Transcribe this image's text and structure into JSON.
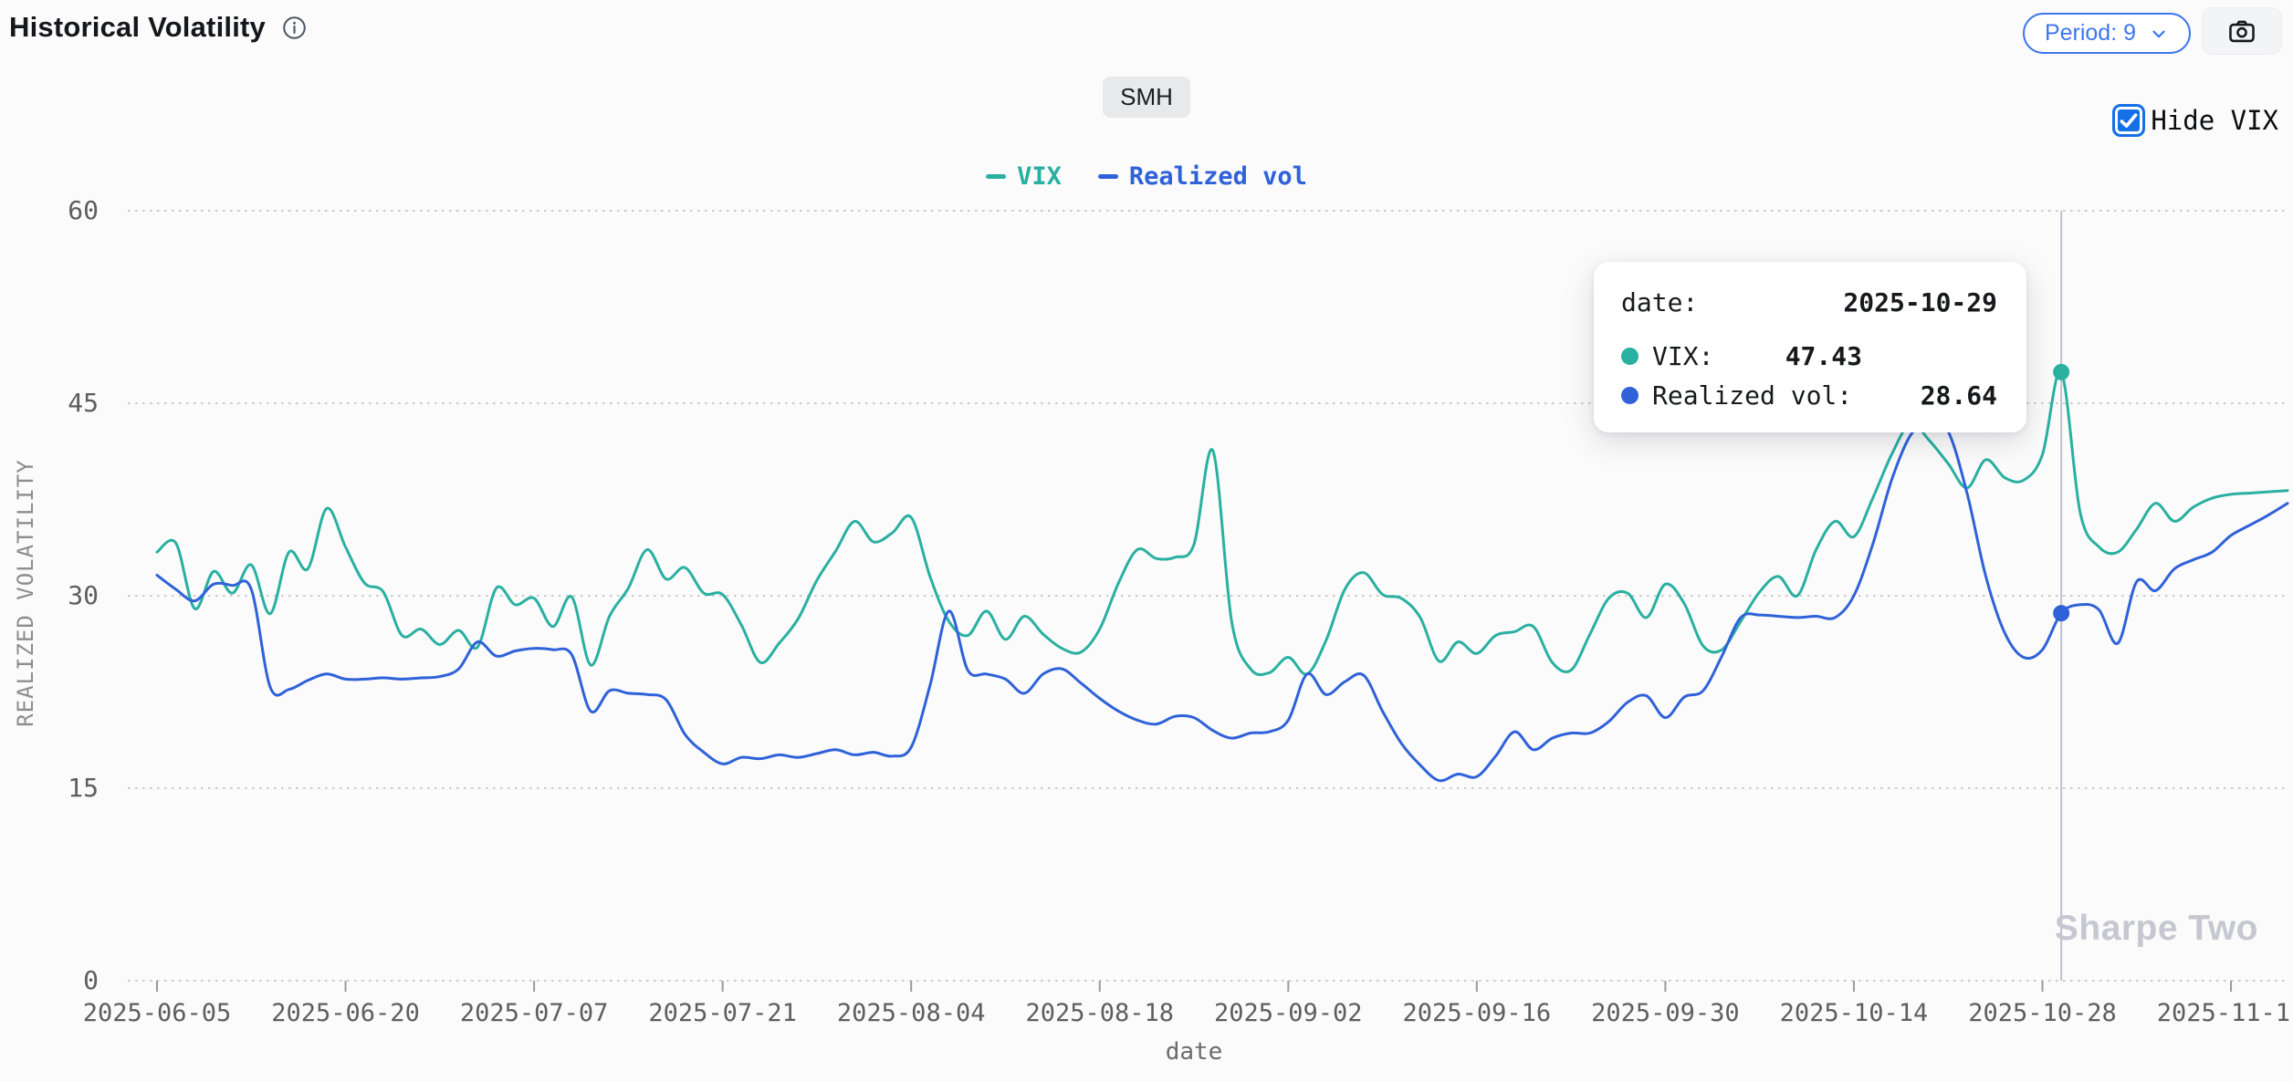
{
  "header": {
    "title": "Historical Volatility",
    "info_icon": "info-icon"
  },
  "controls": {
    "period_button_label": "Period: 9",
    "chevron_icon": "chevron-down-icon",
    "camera_icon": "camera-icon",
    "hide_vix_label": "Hide VIX",
    "hide_vix_checked": true
  },
  "symbol_badge": "SMH",
  "legend": [
    {
      "label": "VIX",
      "color": "#29b0a1"
    },
    {
      "label": "Realized vol",
      "color": "#2f62d9"
    }
  ],
  "tooltip": {
    "date_label": "date:",
    "date_value": "2025-10-29",
    "vix_label": "VIX:",
    "vix_value": "47.43",
    "rv_label": "Realized vol:",
    "rv_value": "28.64"
  },
  "watermark": "Sharpe Two",
  "colors": {
    "accent_blue_button": "#3d76ef",
    "checkbox_blue": "#1470e6",
    "grid": "#cbcbcb",
    "crosshair": "#bdc1c8",
    "axis_text": "#5e5e5e"
  },
  "chart_data": {
    "type": "line",
    "title": "Historical Volatility",
    "xlabel": "date",
    "ylabel": "REALIZED VOLATILITY",
    "ylim": [
      0,
      60
    ],
    "y_ticks": [
      0,
      15,
      30,
      45,
      60
    ],
    "grid": "dotted-horizontal",
    "legend_position": "top-center",
    "n_points": 114,
    "x_tick_indices": [
      0,
      10,
      20,
      30,
      40,
      50,
      60,
      70,
      80,
      90,
      100,
      110
    ],
    "x_tick_labels": [
      "2025-06-05",
      "2025-06-20",
      "2025-07-07",
      "2025-07-21",
      "2025-08-04",
      "2025-08-18",
      "2025-09-02",
      "2025-09-16",
      "2025-09-30",
      "2025-10-14",
      "2025-10-28",
      "2025-11-11"
    ],
    "series": [
      {
        "name": "VIX",
        "color": "#29b0a1",
        "values": [
          33.4,
          34.1,
          29.0,
          31.9,
          30.2,
          32.4,
          28.6,
          33.4,
          32.1,
          36.8,
          33.8,
          31.0,
          30.3,
          26.9,
          27.4,
          26.2,
          27.3,
          26.0,
          30.6,
          29.3,
          29.8,
          27.6,
          29.9,
          24.6,
          28.4,
          30.6,
          33.6,
          31.3,
          32.2,
          30.2,
          30.1,
          27.7,
          24.8,
          26.3,
          28.2,
          31.2,
          33.5,
          35.8,
          34.2,
          34.9,
          36.1,
          31.5,
          28.0,
          26.9,
          28.8,
          26.6,
          28.4,
          27.0,
          25.9,
          25.6,
          27.4,
          31.0,
          33.6,
          32.9,
          33.0,
          34.0,
          41.3,
          28.0,
          24.3,
          24.0,
          25.2,
          23.9,
          26.5,
          30.5,
          31.8,
          30.1,
          29.8,
          28.3,
          24.9,
          26.4,
          25.5,
          26.9,
          27.2,
          27.6,
          24.8,
          24.2,
          27.0,
          29.8,
          30.2,
          28.3,
          30.9,
          29.4,
          26.1,
          25.8,
          28.0,
          30.3,
          31.5,
          30.0,
          33.6,
          35.8,
          34.6,
          37.6,
          41.0,
          43.4,
          42.1,
          40.3,
          38.4,
          40.6,
          39.2,
          39.0,
          41.0,
          47.43,
          36.5,
          33.8,
          33.4,
          35.2,
          37.2,
          35.8,
          36.9,
          37.6,
          37.9,
          38.0,
          38.1,
          38.2
        ]
      },
      {
        "name": "Realized vol",
        "color": "#2f62d9",
        "values": [
          31.6,
          30.5,
          29.6,
          30.9,
          30.8,
          30.5,
          22.9,
          22.7,
          23.4,
          23.9,
          23.5,
          23.5,
          23.6,
          23.5,
          23.6,
          23.7,
          24.3,
          26.4,
          25.3,
          25.7,
          25.9,
          25.8,
          25.4,
          21.0,
          22.6,
          22.4,
          22.3,
          21.9,
          19.2,
          17.8,
          16.9,
          17.4,
          17.3,
          17.6,
          17.4,
          17.7,
          18.0,
          17.6,
          17.8,
          17.5,
          18.2,
          23.0,
          28.8,
          24.2,
          23.9,
          23.5,
          22.4,
          23.9,
          24.3,
          23.2,
          22.0,
          21.0,
          20.3,
          20.0,
          20.6,
          20.5,
          19.5,
          18.9,
          19.3,
          19.4,
          20.3,
          23.9,
          22.3,
          23.3,
          23.8,
          21.0,
          18.5,
          16.8,
          15.6,
          16.1,
          15.9,
          17.5,
          19.4,
          18.0,
          18.9,
          19.3,
          19.3,
          20.2,
          21.7,
          22.2,
          20.5,
          22.1,
          22.6,
          25.3,
          28.3,
          28.5,
          28.4,
          28.3,
          28.4,
          28.3,
          30.0,
          34.0,
          39.0,
          42.5,
          43.6,
          42.8,
          38.0,
          31.5,
          27.1,
          25.2,
          25.8,
          28.64,
          29.3,
          28.9,
          26.3,
          31.1,
          30.4,
          32.1,
          32.8,
          33.4,
          34.7,
          35.5,
          36.3,
          37.2
        ]
      }
    ],
    "highlight": {
      "index": 101,
      "date": "2025-10-29",
      "VIX": 47.43,
      "Realized vol": 28.64
    }
  }
}
